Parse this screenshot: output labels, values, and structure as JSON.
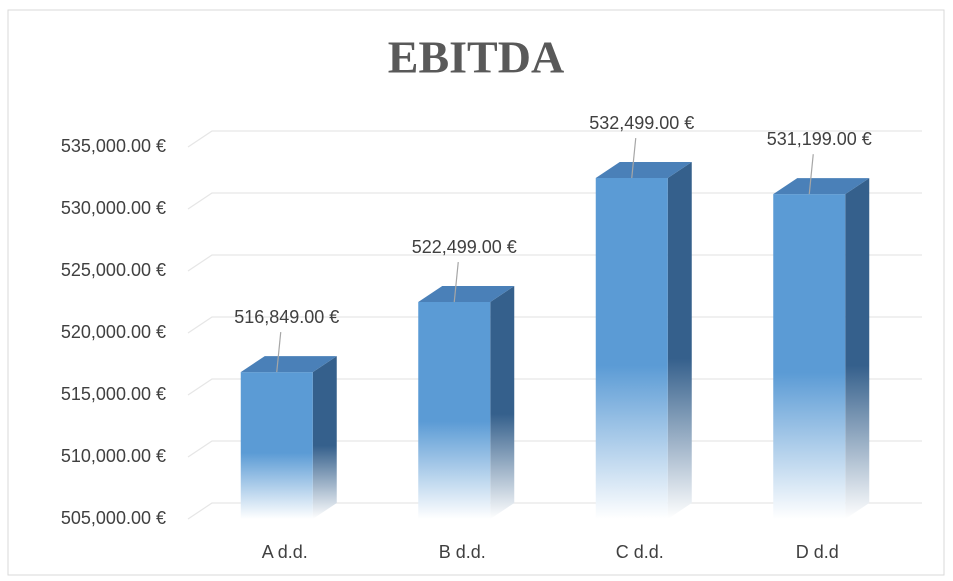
{
  "chart_data": {
    "type": "bar3d",
    "title": "EBITDA",
    "categories": [
      "A d.d.",
      "B d.d.",
      "C d.d.",
      "D d.d"
    ],
    "values": [
      516849,
      522499,
      532499,
      531199
    ],
    "value_labels": [
      "516,849.00 €",
      "522,499.00 €",
      "532,499.00 €",
      "531,199.00 €"
    ],
    "color": "#5b9bd5",
    "ylim": [
      505000,
      535000
    ],
    "yticks": [
      {
        "value": 505000,
        "label": "505,000.00 €"
      },
      {
        "value": 510000,
        "label": "510,000.00 €"
      },
      {
        "value": 515000,
        "label": "515,000.00 €"
      },
      {
        "value": 520000,
        "label": "520,000.00 €"
      },
      {
        "value": 525000,
        "label": "525,000.00 €"
      },
      {
        "value": 530000,
        "label": "530,000.00 €"
      },
      {
        "value": 535000,
        "label": "535,000.00 €"
      }
    ],
    "grid": true
  }
}
